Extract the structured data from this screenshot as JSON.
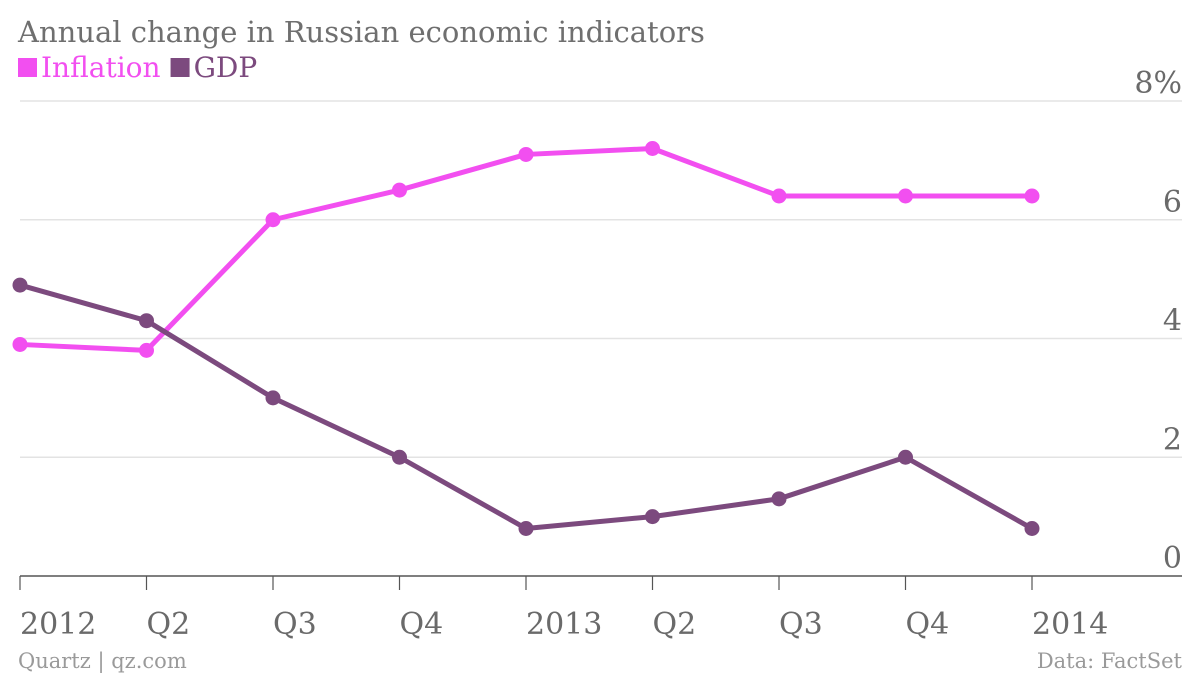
{
  "chart_data": {
    "type": "line",
    "title": "Annual change in Russian economic indicators",
    "categories": [
      "2012",
      "Q2",
      "Q3",
      "Q4",
      "2013",
      "Q2",
      "Q3",
      "Q4",
      "2014"
    ],
    "series": [
      {
        "name": "Inflation",
        "color": "#f24ff0",
        "values": [
          3.9,
          3.8,
          6.0,
          6.5,
          7.1,
          7.2,
          6.4,
          6.4,
          6.4
        ]
      },
      {
        "name": "GDP",
        "color": "#7c4a7e",
        "values": [
          4.9,
          4.3,
          3.0,
          2.0,
          0.8,
          1.0,
          1.3,
          2.0,
          0.8
        ]
      }
    ],
    "ylim": [
      0,
      8
    ],
    "y_ticks": [
      {
        "value": 8,
        "label": "8%"
      },
      {
        "value": 6,
        "label": "6"
      },
      {
        "value": 4,
        "label": "4"
      },
      {
        "value": 2,
        "label": "2"
      },
      {
        "value": 0,
        "label": "0"
      }
    ],
    "grid": true,
    "legend": "top-left",
    "y_axis_position": "right"
  },
  "footer": {
    "source_left": "Quartz | qz.com",
    "source_right": "Data: FactSet"
  },
  "colors": {
    "grid": "#e3e3e3",
    "axis": "#555555",
    "text": "#6a6a6a"
  }
}
